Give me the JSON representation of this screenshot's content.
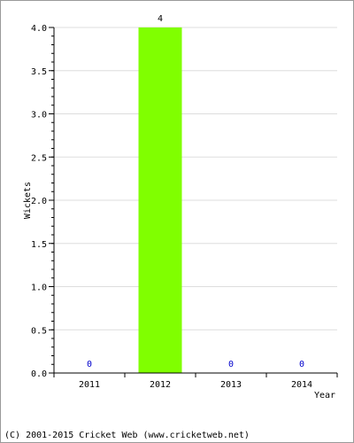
{
  "chart_data": {
    "type": "bar",
    "categories": [
      "2011",
      "2012",
      "2013",
      "2014"
    ],
    "values": [
      0,
      4,
      0,
      0
    ],
    "data_labels": [
      "0",
      "4",
      "0",
      "0"
    ],
    "xlabel": "Year",
    "ylabel": "Wickets",
    "ylim": [
      0,
      4
    ],
    "yticks": [
      "0.0",
      "0.5",
      "1.0",
      "1.5",
      "2.0",
      "2.5",
      "3.0",
      "3.5",
      "4.0"
    ],
    "grid": true,
    "bar_color": "#80ff00",
    "zero_label_color": "#0000cc"
  },
  "footer": {
    "copyright": "(C) 2001-2015 Cricket Web (www.cricketweb.net)"
  }
}
